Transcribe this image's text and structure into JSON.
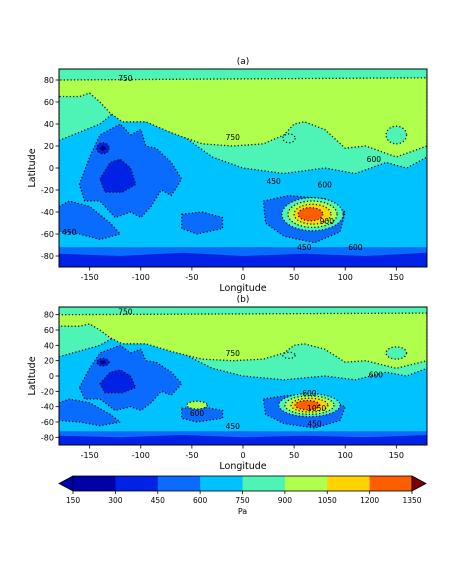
{
  "chart_data": [
    {
      "type": "heatmap",
      "title": "(a)",
      "xlabel": "Longitude",
      "ylabel": "Latitude",
      "xlim": [
        -180,
        180
      ],
      "ylim": [
        -90,
        90
      ],
      "xticks": [
        -150,
        -100,
        -50,
        0,
        50,
        100,
        150
      ],
      "yticks": [
        -80,
        -60,
        -40,
        -20,
        0,
        20,
        40,
        60,
        80
      ],
      "contour_labels": [
        "750",
        "750",
        "600",
        "600",
        "450",
        "450",
        "450",
        "600",
        "900"
      ],
      "features": {
        "polar_north_band": 750,
        "north_plains": 900,
        "tharsis_low_center": [
          -125,
          -5
        ],
        "tharsis_low_value": 150,
        "hellas_center": [
          68,
          -42
        ],
        "hellas_max": 1050,
        "south_band": 300
      }
    },
    {
      "type": "heatmap",
      "title": "(b)",
      "xlabel": "Longitude",
      "ylabel": "Latitude",
      "xlim": [
        -180,
        180
      ],
      "ylim": [
        -90,
        90
      ],
      "xticks": [
        -150,
        -100,
        -50,
        0,
        50,
        100,
        150
      ],
      "yticks": [
        -80,
        -60,
        -40,
        -20,
        0,
        20,
        40,
        60,
        80
      ],
      "contour_labels": [
        "750",
        "750",
        "600",
        "600",
        "600",
        "450",
        "450",
        "1050"
      ],
      "features": {
        "polar_north_band": 750,
        "north_plains": 900,
        "tharsis_low_center": [
          -125,
          -5
        ],
        "tharsis_low_value": 150,
        "hellas_center": [
          65,
          -38
        ],
        "hellas_max": 1200,
        "south_band": 300
      }
    }
  ],
  "colorbar": {
    "label": "Pa",
    "ticks": [
      "150",
      "300",
      "450",
      "600",
      "750",
      "900",
      "1050",
      "1200",
      "1350"
    ],
    "colors": [
      "#0000a8",
      "#0021e6",
      "#0a6bff",
      "#00c2ff",
      "#4ef3b6",
      "#b0ff4c",
      "#ffd400",
      "#ff5e00",
      "#c40000",
      "#7d0000"
    ]
  },
  "colors": {
    "level_300": "#0021e6",
    "level_450": "#0a6bff",
    "level_600": "#00c2ff",
    "level_750": "#4ef3b6",
    "level_900": "#b0ff4c",
    "level_1050": "#ffd400",
    "level_1200": "#ff5e00",
    "level_1350": "#c40000"
  }
}
